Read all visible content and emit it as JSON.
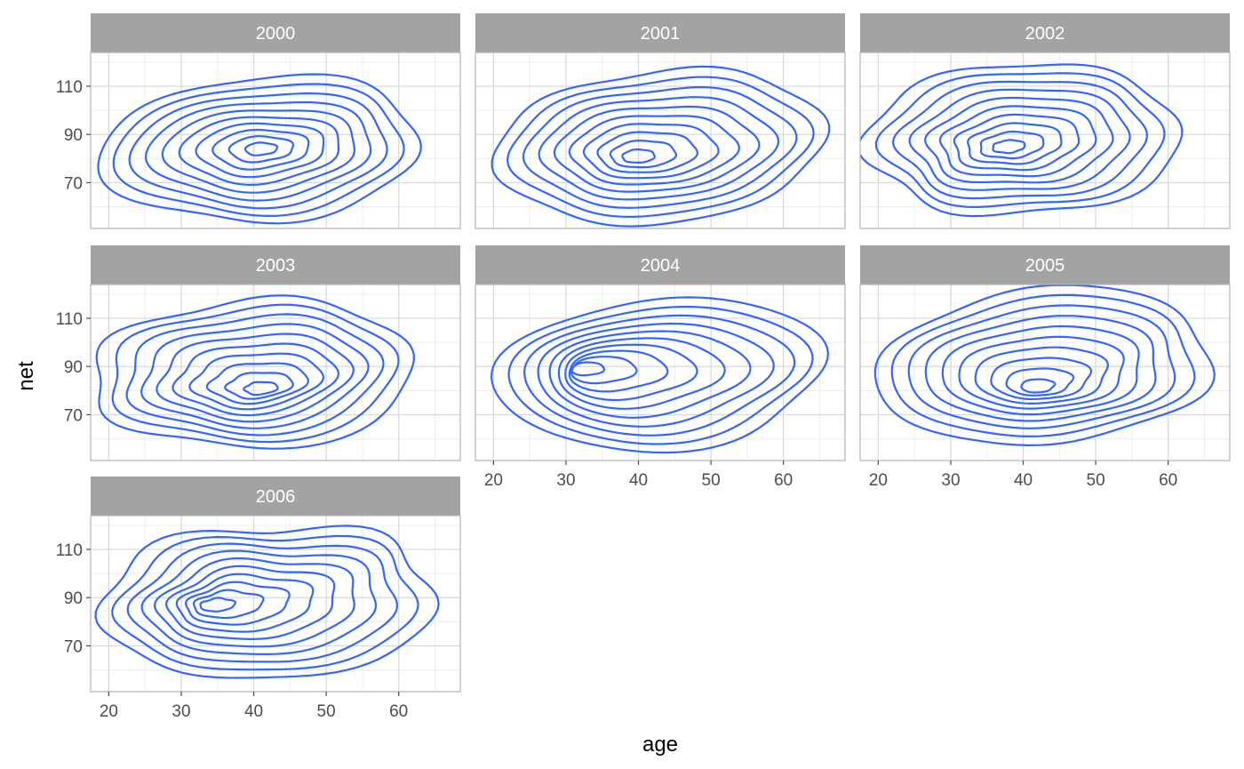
{
  "chart_data": {
    "type": "contour",
    "facet_variable_values": [
      "2000",
      "2001",
      "2002",
      "2003",
      "2004",
      "2005",
      "2006"
    ],
    "xlabel": "age",
    "ylabel": "net",
    "x_ticks": [
      20,
      30,
      40,
      50,
      60
    ],
    "y_ticks": [
      70,
      90,
      110
    ],
    "xlim": [
      17.5,
      68.5
    ],
    "ylim": [
      51,
      124
    ],
    "grid": true,
    "line_color": "#3366FF",
    "strip_color": "#A3A3A3",
    "panels": [
      {
        "label": "2000",
        "center": [
          41,
          84
        ],
        "outer_x": [
          21,
          65
        ],
        "outer_y": [
          53,
          113
        ],
        "mode": [
          41,
          84
        ],
        "levels": 10
      },
      {
        "label": "2001",
        "center": [
          43,
          85
        ],
        "outer_x": [
          22,
          67
        ],
        "outer_y": [
          54,
          118
        ],
        "mode": [
          40,
          81
        ],
        "levels": 10
      },
      {
        "label": "2002",
        "center": [
          40,
          88
        ],
        "outer_x": [
          20,
          64
        ],
        "outer_y": [
          56,
          118
        ],
        "mode": [
          38,
          85
        ],
        "levels": 10
      },
      {
        "label": "2003",
        "center": [
          40,
          87
        ],
        "outer_x": [
          20,
          65
        ],
        "outer_y": [
          57,
          118
        ],
        "mode": [
          41,
          81
        ],
        "levels": 10
      },
      {
        "label": "2004",
        "center": [
          43,
          87
        ],
        "outer_x": [
          22,
          67
        ],
        "outer_y": [
          57,
          120
        ],
        "mode": [
          33,
          89
        ],
        "levels": 10
      },
      {
        "label": "2005",
        "center": [
          43,
          90
        ],
        "outer_x": [
          20,
          66
        ],
        "outer_y": [
          57,
          122
        ],
        "mode": [
          42,
          82
        ],
        "levels": 10
      },
      {
        "label": "2006",
        "center": [
          42,
          88
        ],
        "outer_x": [
          20,
          67
        ],
        "outer_y": [
          57,
          120
        ],
        "mode": [
          35,
          87
        ],
        "levels": 10
      }
    ]
  }
}
